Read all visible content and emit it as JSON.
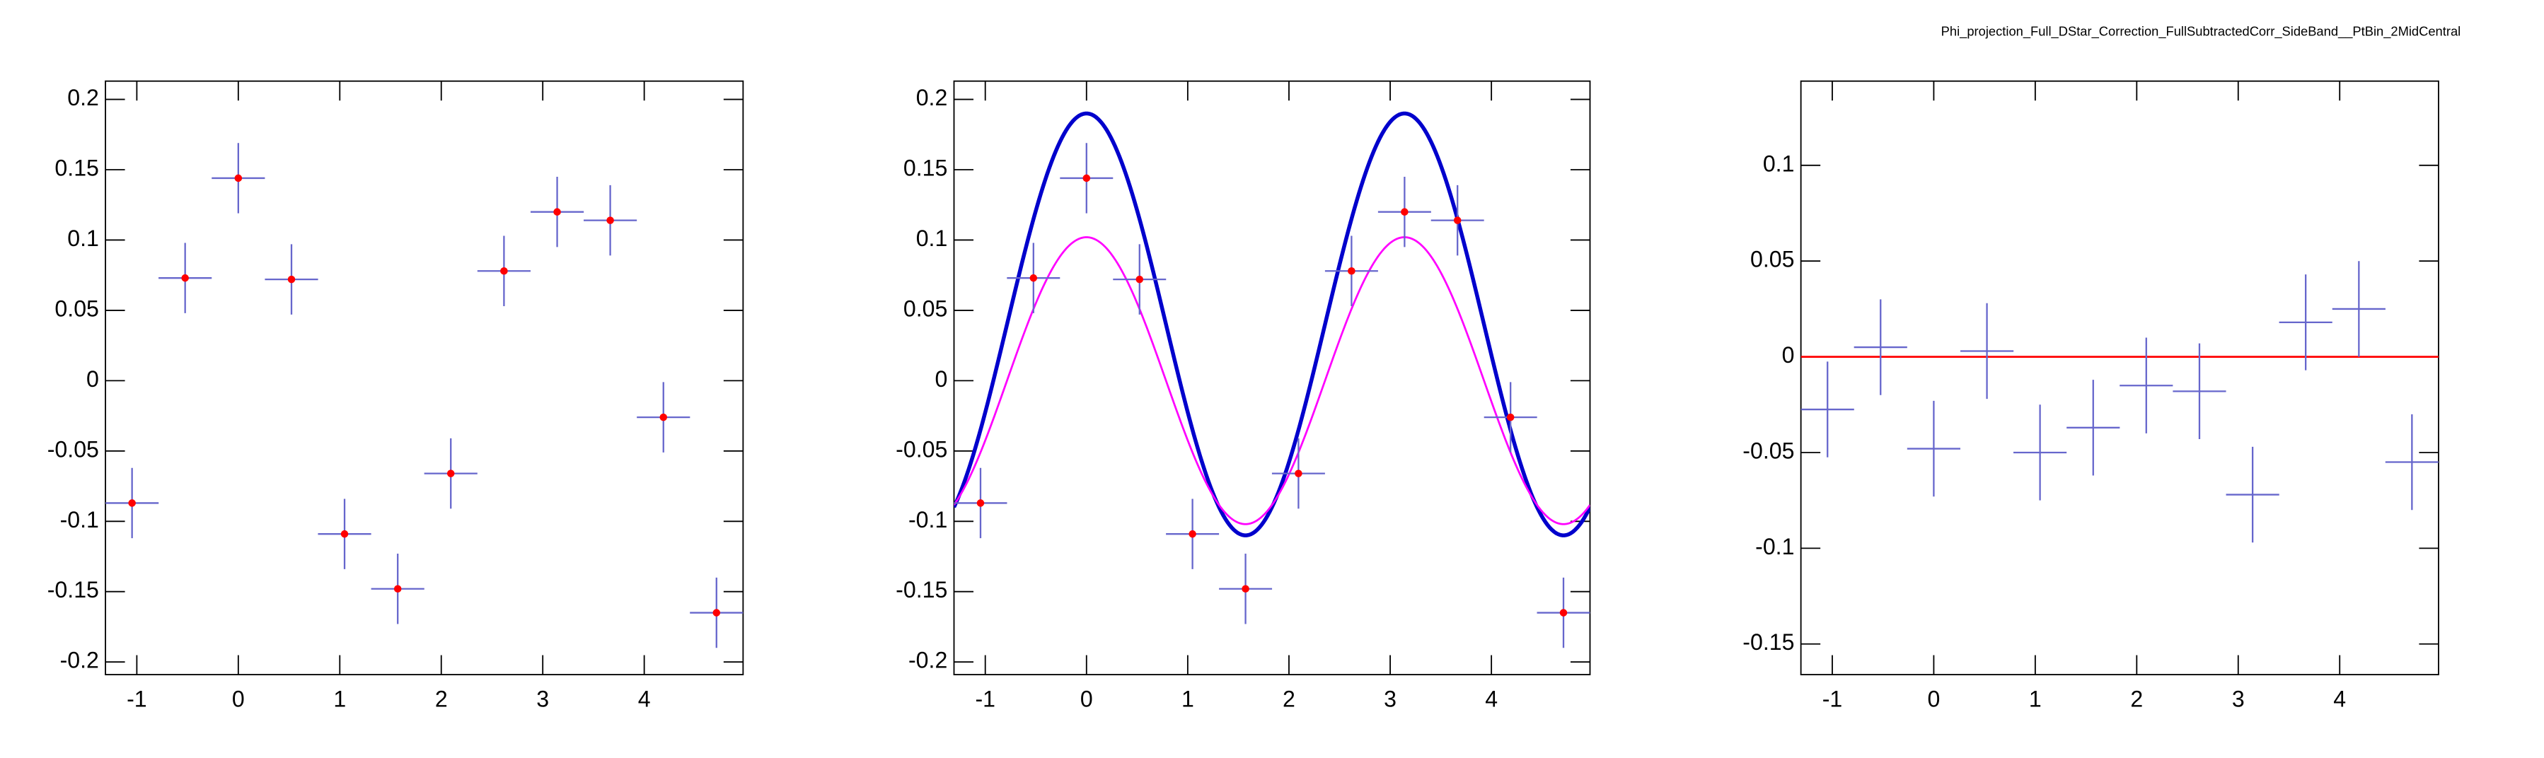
{
  "chart_data": [
    {
      "type": "errorbar",
      "x": [
        -1.047,
        -0.524,
        0,
        0.524,
        1.047,
        1.571,
        2.094,
        2.618,
        3.142,
        3.665,
        4.189,
        4.712
      ],
      "values": [
        -0.087,
        0.073,
        0.144,
        0.072,
        -0.109,
        -0.148,
        -0.066,
        0.078,
        0.12,
        0.114,
        -0.026,
        -0.165
      ],
      "errors": [
        0.025,
        0.025,
        0.025,
        0.025,
        0.025,
        0.025,
        0.025,
        0.025,
        0.025,
        0.025,
        0.025,
        0.025
      ],
      "xerr": 0.262,
      "color": "#6666cc",
      "marker_color": "#ff0000",
      "xlim": [
        -1.309,
        4.974
      ],
      "ylim": [
        -0.209,
        0.213
      ],
      "xticks": [
        -1,
        0,
        1,
        2,
        3,
        4
      ],
      "yticks": [
        -0.2,
        -0.15,
        -0.1,
        -0.05,
        0,
        0.05,
        0.1,
        0.15,
        0.2
      ]
    },
    {
      "type": "errorbar",
      "x": [
        -1.047,
        -0.524,
        0,
        0.524,
        1.047,
        1.571,
        2.094,
        2.618,
        3.142,
        3.665,
        4.189,
        4.712
      ],
      "values": [
        -0.087,
        0.073,
        0.144,
        0.072,
        -0.109,
        -0.148,
        -0.066,
        0.078,
        0.12,
        0.114,
        -0.026,
        -0.165
      ],
      "errors": [
        0.025,
        0.025,
        0.025,
        0.025,
        0.025,
        0.025,
        0.025,
        0.025,
        0.025,
        0.025,
        0.025,
        0.025
      ],
      "xerr": 0.262,
      "color": "#6666cc",
      "marker_color": "#ff0000",
      "fits": [
        {
          "color": "#0000cc",
          "offset": 0.04,
          "amplitude": 0.15,
          "frequency": 2
        },
        {
          "color": "#ff00ff",
          "offset": 0,
          "amplitude": 0.102,
          "frequency": 2
        }
      ],
      "xlim": [
        -1.309,
        4.974
      ],
      "ylim": [
        -0.209,
        0.213
      ],
      "xticks": [
        -1,
        0,
        1,
        2,
        3,
        4
      ],
      "yticks": [
        -0.2,
        -0.15,
        -0.1,
        -0.05,
        0,
        0.05,
        0.1,
        0.15,
        0.2
      ]
    },
    {
      "type": "errorbar",
      "title": "Phi_projection_Full_DStar_Correction_FullSubtractedCorr_SideBand__PtBin_2MidCentral",
      "x": [
        -1.047,
        -0.524,
        0,
        0.524,
        1.047,
        1.571,
        2.094,
        2.618,
        3.142,
        3.665,
        4.189,
        4.712
      ],
      "values": [
        -0.0275,
        0.005,
        -0.048,
        0.003,
        -0.05,
        -0.037,
        -0.015,
        -0.018,
        -0.072,
        0.018,
        0.025,
        -0.055
      ],
      "errors": [
        0.025,
        0.025,
        0.025,
        0.025,
        0.025,
        0.025,
        0.025,
        0.025,
        0.025,
        0.025,
        0.025,
        0.025
      ],
      "xerr": 0.262,
      "color": "#6666cc",
      "hline": {
        "value": 0,
        "color": "#ff0000"
      },
      "xlim": [
        -1.309,
        4.974
      ],
      "ylim": [
        -0.166,
        0.144
      ],
      "xticks": [
        -1,
        0,
        1,
        2,
        3,
        4
      ],
      "yticks": [
        -0.15,
        -0.1,
        -0.05,
        0,
        0.05,
        0.1
      ]
    }
  ]
}
